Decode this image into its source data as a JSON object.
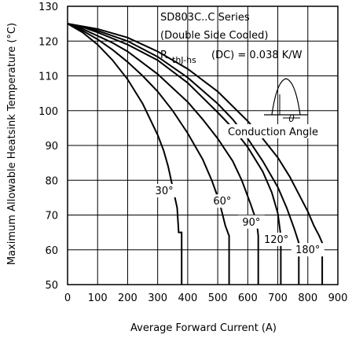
{
  "chart_data": {
    "type": "line",
    "title": "",
    "xlabel": "Average Forward Current (A)",
    "ylabel": "Maximum Allowable Heatsink Temperature (°C)",
    "xlim": [
      0,
      900
    ],
    "ylim": [
      50,
      130
    ],
    "x_ticks": [
      "0",
      "100",
      "200",
      "300",
      "400",
      "500",
      "600",
      "700",
      "800",
      "900"
    ],
    "y_ticks": [
      "50",
      "60",
      "70",
      "80",
      "90",
      "100",
      "110",
      "120",
      "130"
    ],
    "grid": true,
    "annotations": {
      "series_line1": "SD803C..C Series",
      "series_line2": "(Double Side Cooled)",
      "rth_prefix": "R",
      "rth_sub": "thJ-hs",
      "rth_value": "(DC) = 0.038 K/W",
      "conduction_symbol": "θ",
      "conduction_label": "Conduction Angle"
    },
    "series": [
      {
        "name": "30°",
        "label_xy": [
          322,
          76
        ],
        "x": [
          0,
          50,
          100,
          150,
          200,
          250,
          300,
          320,
          335,
          350,
          365,
          370,
          380,
          380
        ],
        "y": [
          125,
          122.5,
          119,
          114.5,
          109,
          102,
          93,
          88.5,
          84,
          78,
          72,
          65,
          65,
          50
        ]
      },
      {
        "name": "60°",
        "label_xy": [
          515,
          73
        ],
        "x": [
          0,
          50,
          100,
          150,
          200,
          250,
          300,
          350,
          400,
          450,
          480,
          505,
          525,
          538,
          538
        ],
        "y": [
          125,
          123,
          120.5,
          117.5,
          114,
          110,
          105.5,
          100,
          93.5,
          86,
          80,
          74,
          67,
          64,
          50
        ]
      },
      {
        "name": "90°",
        "label_xy": [
          612,
          67
        ],
        "x": [
          0,
          50,
          100,
          150,
          200,
          300,
          400,
          450,
          500,
          550,
          580,
          610,
          630,
          635,
          635
        ],
        "y": [
          125,
          123.5,
          121.5,
          119.5,
          117,
          110.5,
          102.5,
          97.5,
          92,
          85.5,
          80,
          73,
          68,
          64,
          50
        ]
      },
      {
        "name": "120°",
        "label_xy": [
          695,
          62
        ],
        "x": [
          0,
          50,
          100,
          200,
          300,
          400,
          500,
          550,
          600,
          650,
          680,
          700,
          710,
          710
        ],
        "y": [
          125,
          124,
          122.5,
          119,
          114.5,
          108,
          99.5,
          95,
          89.5,
          82.5,
          76.5,
          70.5,
          64,
          50
        ]
      },
      {
        "name": "180°",
        "label_xy": [
          800,
          59
        ],
        "x": [
          0,
          100,
          200,
          300,
          400,
          500,
          550,
          600,
          650,
          700,
          730,
          755,
          770,
          770
        ],
        "y": [
          125,
          123,
          120,
          115.5,
          109.5,
          102,
          97.5,
          92,
          85.5,
          78,
          72,
          66,
          62,
          50
        ]
      },
      {
        "name": "DC",
        "x": [
          0,
          100,
          200,
          300,
          400,
          500,
          600,
          650,
          700,
          740,
          770,
          800,
          820,
          838,
          848,
          848
        ],
        "y": [
          125,
          123.5,
          121,
          117,
          112,
          105.5,
          97,
          92,
          86.5,
          81,
          76,
          71,
          67,
          64,
          62,
          50
        ]
      }
    ]
  }
}
